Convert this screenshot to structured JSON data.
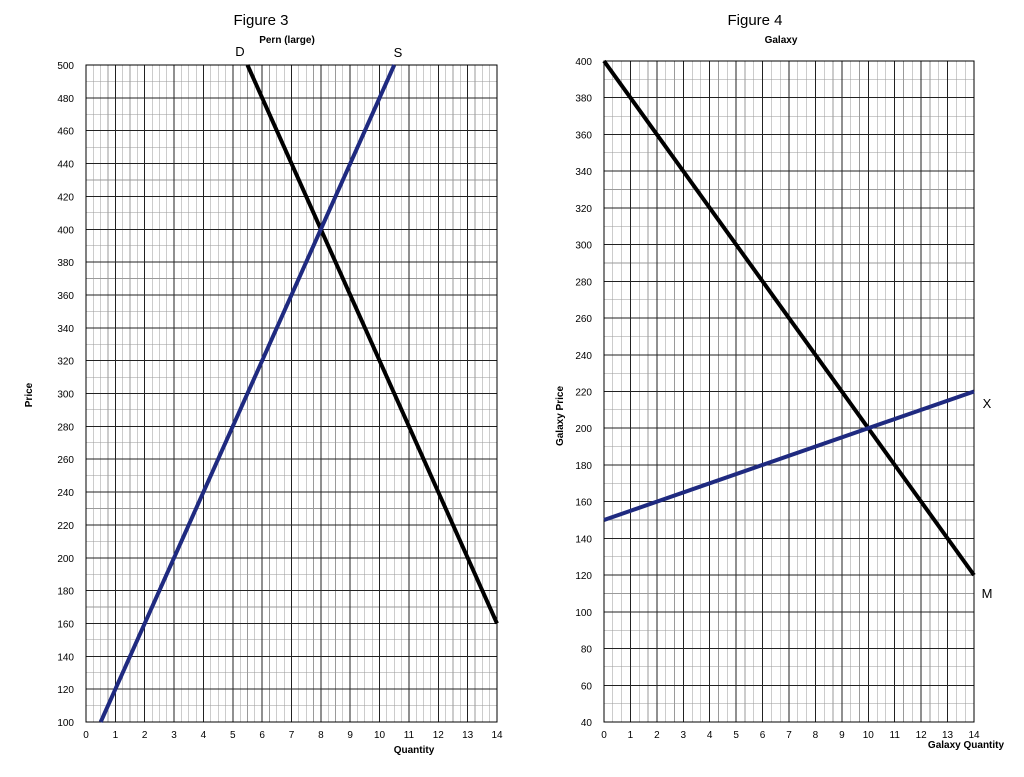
{
  "figures": [
    {
      "figure_label": "Figure 3",
      "chart_data": {
        "type": "line",
        "title": "Pern (large)",
        "xlabel": "Quantity",
        "ylabel": "Price",
        "xlim": [
          0,
          14
        ],
        "ylim": [
          100,
          500
        ],
        "x_ticks": [
          "0",
          "1",
          "2",
          "3",
          "4",
          "5",
          "6",
          "7",
          "8",
          "9",
          "10",
          "11",
          "12",
          "13",
          "14"
        ],
        "y_ticks": [
          "100",
          "120",
          "140",
          "160",
          "180",
          "200",
          "220",
          "240",
          "260",
          "280",
          "300",
          "320",
          "340",
          "360",
          "380",
          "400",
          "420",
          "440",
          "460",
          "480",
          "500"
        ],
        "grid": true,
        "series": [
          {
            "name": "D",
            "color": "#000000",
            "points": [
              [
                5.5,
                500
              ],
              [
                14,
                160
              ]
            ]
          },
          {
            "name": "S",
            "color": "#1f2a80",
            "points": [
              [
                0.5,
                100
              ],
              [
                10.5,
                500
              ]
            ]
          }
        ]
      }
    },
    {
      "figure_label": "Figure 4",
      "chart_data": {
        "type": "line",
        "title": "Galaxy",
        "xlabel": "Galaxy Quantity",
        "ylabel": "Galaxy Price",
        "xlim": [
          0,
          14
        ],
        "ylim": [
          40,
          400
        ],
        "x_ticks": [
          "0",
          "1",
          "2",
          "3",
          "4",
          "5",
          "6",
          "7",
          "8",
          "9",
          "10",
          "11",
          "12",
          "13",
          "14"
        ],
        "y_ticks": [
          "40",
          "60",
          "80",
          "100",
          "120",
          "140",
          "160",
          "180",
          "200",
          "220",
          "240",
          "260",
          "280",
          "300",
          "320",
          "340",
          "360",
          "380",
          "400"
        ],
        "grid": true,
        "series": [
          {
            "name": "M",
            "color": "#000000",
            "points": [
              [
                0,
                400
              ],
              [
                14,
                120
              ]
            ]
          },
          {
            "name": "X",
            "color": "#1f2a80",
            "points": [
              [
                0,
                150
              ],
              [
                14,
                220
              ]
            ]
          }
        ]
      }
    }
  ]
}
